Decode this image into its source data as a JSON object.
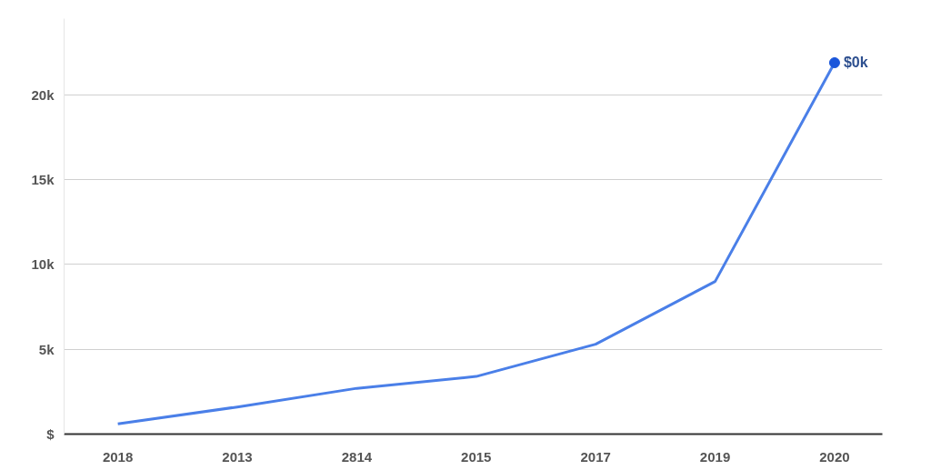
{
  "chart_data": {
    "type": "line",
    "categories": [
      "2018",
      "2013",
      "2814",
      "2015",
      "2017",
      "2019",
      "2020"
    ],
    "series": [
      {
        "color": "#4a7fe8",
        "values": [
          600,
          1600,
          2700,
          3400,
          5300,
          9000,
          21900
        ]
      }
    ],
    "ylim": [
      0,
      24500
    ],
    "yticks": [
      {
        "value": 0,
        "label": "$"
      },
      {
        "value": 5000,
        "label": "5k"
      },
      {
        "value": 10000,
        "label": "10k"
      },
      {
        "value": 15000,
        "label": "15k"
      },
      {
        "value": 20000,
        "label": "20k"
      }
    ],
    "grid": "y",
    "line_style": "solid",
    "annotations": [
      {
        "text": "$0k",
        "x": "2020",
        "y": 21900
      }
    ]
  }
}
